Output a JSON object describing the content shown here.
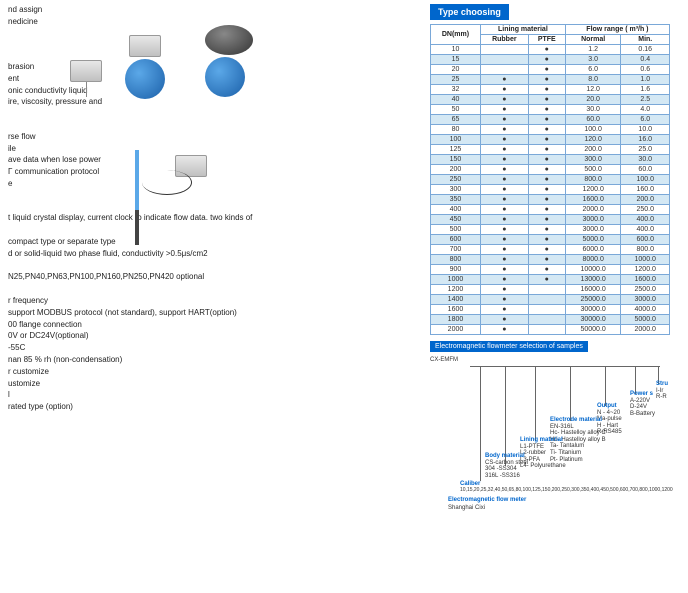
{
  "left": {
    "assign": "nd assign",
    "medicine": "nedicine",
    "brasion": "brasion",
    "ent": "ent",
    "conductivity": "onic conductivity liquid",
    "viscosity": "ire, viscosity, pressure and",
    "rseflow": "rse flow",
    "ile": "ile",
    "savedata": "ave data when lose power",
    "protocol": "Γ communication protocol",
    "e": "e",
    "lcd": "t liquid crystal display, current clock to indicate flow data. two kinds of",
    "compact": "compact type or separate type",
    "fluid": "d or solid-liquid two phase fluid, conductivity >0.5μs/cm2",
    "pn": "N25,PN40,PN63,PN100,PN160,PN250,PN420 optional",
    "freq": "r frequency",
    "modbus": "support MODBUS protocol (not standard), support HART(option)",
    "flange": "00 flange connection",
    "power": "0V or DC24V(optional)",
    "temp": "-55C",
    "humidity": "nan 85 % rh  (non-condensation)",
    "customize": "r customize",
    "ustomize": "ustomize",
    "l": "l",
    "rated": "rated type (option)"
  },
  "table": {
    "header": "Type choosing",
    "header_bg": "#0066cc",
    "col_dn": "DN(mm)",
    "col_lining": "Lining material",
    "col_rubber": "Rubber",
    "col_ptfe": "PTFE",
    "col_flow": "Flow range ( m³/h )",
    "col_normal": "Normal",
    "col_min": "Min.",
    "row_bg_even": "#d4e8f4",
    "row_bg_odd": "#ffffff",
    "border_color": "#7aa8d8",
    "rows": [
      {
        "dn": "10",
        "r": "",
        "p": "●",
        "n": "1.2",
        "m": "0.16"
      },
      {
        "dn": "15",
        "r": "",
        "p": "●",
        "n": "3.0",
        "m": "0.4"
      },
      {
        "dn": "20",
        "r": "",
        "p": "●",
        "n": "6.0",
        "m": "0.6"
      },
      {
        "dn": "25",
        "r": "●",
        "p": "●",
        "n": "8.0",
        "m": "1.0"
      },
      {
        "dn": "32",
        "r": "●",
        "p": "●",
        "n": "12.0",
        "m": "1.6"
      },
      {
        "dn": "40",
        "r": "●",
        "p": "●",
        "n": "20.0",
        "m": "2.5"
      },
      {
        "dn": "50",
        "r": "●",
        "p": "●",
        "n": "30.0",
        "m": "4.0"
      },
      {
        "dn": "65",
        "r": "●",
        "p": "●",
        "n": "60.0",
        "m": "6.0"
      },
      {
        "dn": "80",
        "r": "●",
        "p": "●",
        "n": "100.0",
        "m": "10.0"
      },
      {
        "dn": "100",
        "r": "●",
        "p": "●",
        "n": "120.0",
        "m": "16.0"
      },
      {
        "dn": "125",
        "r": "●",
        "p": "●",
        "n": "200.0",
        "m": "25.0"
      },
      {
        "dn": "150",
        "r": "●",
        "p": "●",
        "n": "300.0",
        "m": "30.0"
      },
      {
        "dn": "200",
        "r": "●",
        "p": "●",
        "n": "500.0",
        "m": "60.0"
      },
      {
        "dn": "250",
        "r": "●",
        "p": "●",
        "n": "800.0",
        "m": "100.0"
      },
      {
        "dn": "300",
        "r": "●",
        "p": "●",
        "n": "1200.0",
        "m": "160.0"
      },
      {
        "dn": "350",
        "r": "●",
        "p": "●",
        "n": "1600.0",
        "m": "200.0"
      },
      {
        "dn": "400",
        "r": "●",
        "p": "●",
        "n": "2000.0",
        "m": "250.0"
      },
      {
        "dn": "450",
        "r": "●",
        "p": "●",
        "n": "3000.0",
        "m": "400.0"
      },
      {
        "dn": "500",
        "r": "●",
        "p": "●",
        "n": "3000.0",
        "m": "400.0"
      },
      {
        "dn": "600",
        "r": "●",
        "p": "●",
        "n": "5000.0",
        "m": "600.0"
      },
      {
        "dn": "700",
        "r": "●",
        "p": "●",
        "n": "6000.0",
        "m": "800.0"
      },
      {
        "dn": "800",
        "r": "●",
        "p": "●",
        "n": "8000.0",
        "m": "1000.0"
      },
      {
        "dn": "900",
        "r": "●",
        "p": "●",
        "n": "10000.0",
        "m": "1200.0"
      },
      {
        "dn": "1000",
        "r": "●",
        "p": "●",
        "n": "13000.0",
        "m": "1600.0"
      },
      {
        "dn": "1200",
        "r": "●",
        "p": "",
        "n": "16000.0",
        "m": "2500.0"
      },
      {
        "dn": "1400",
        "r": "●",
        "p": "",
        "n": "25000.0",
        "m": "3000.0"
      },
      {
        "dn": "1600",
        "r": "●",
        "p": "",
        "n": "30000.0",
        "m": "4000.0"
      },
      {
        "dn": "1800",
        "r": "●",
        "p": "",
        "n": "30000.0",
        "m": "5000.0"
      },
      {
        "dn": "2000",
        "r": "●",
        "p": "",
        "n": "50000.0",
        "m": "2000.0"
      }
    ]
  },
  "selection": {
    "header": "Electromagnetic flowmeter selection of samples",
    "model": "CX-EMFM",
    "caliber_label": "Caliber",
    "caliber_values": "10,15,20,25,32,40,50,65,80,100,125,150,200,250,300,350,400,450,500,600,700,800,1000,1200",
    "flowmeter": "Electromagnetic flow meter",
    "brand": "Shanghai Cixi",
    "body": {
      "label": "Body material",
      "cs": "CS-carbon steel",
      "ss304": "304 -SS304",
      "ss316": "316L -SS316"
    },
    "lining": {
      "label": "Lining material",
      "l1": "L1-PTFE",
      "l2": "L2-rubber",
      "l3": "L3-PFA",
      "l4": "L4- Polyurethane"
    },
    "electrode": {
      "label": "Electrode material",
      "en": "EN-316L",
      "hc": "Hc- Hastelloy alloy C",
      "hb": "Hb- Hastelloy alloy B",
      "ta": "Ta- Tantalum",
      "ti": "Ti- Titanium",
      "pt": "Pt- Platinum"
    },
    "output": {
      "label": "Output",
      "n": "N - 4~20",
      "ma": "Ma-pulse",
      "h": "H - Hart",
      "r": "R-RS485"
    },
    "power": {
      "label": "Power s",
      "a": "A-220V",
      "d": "D-24V",
      "b": "B-Battery"
    },
    "struc": {
      "label": "Stru",
      "i": "I-Ir",
      "r": "R-R"
    }
  }
}
